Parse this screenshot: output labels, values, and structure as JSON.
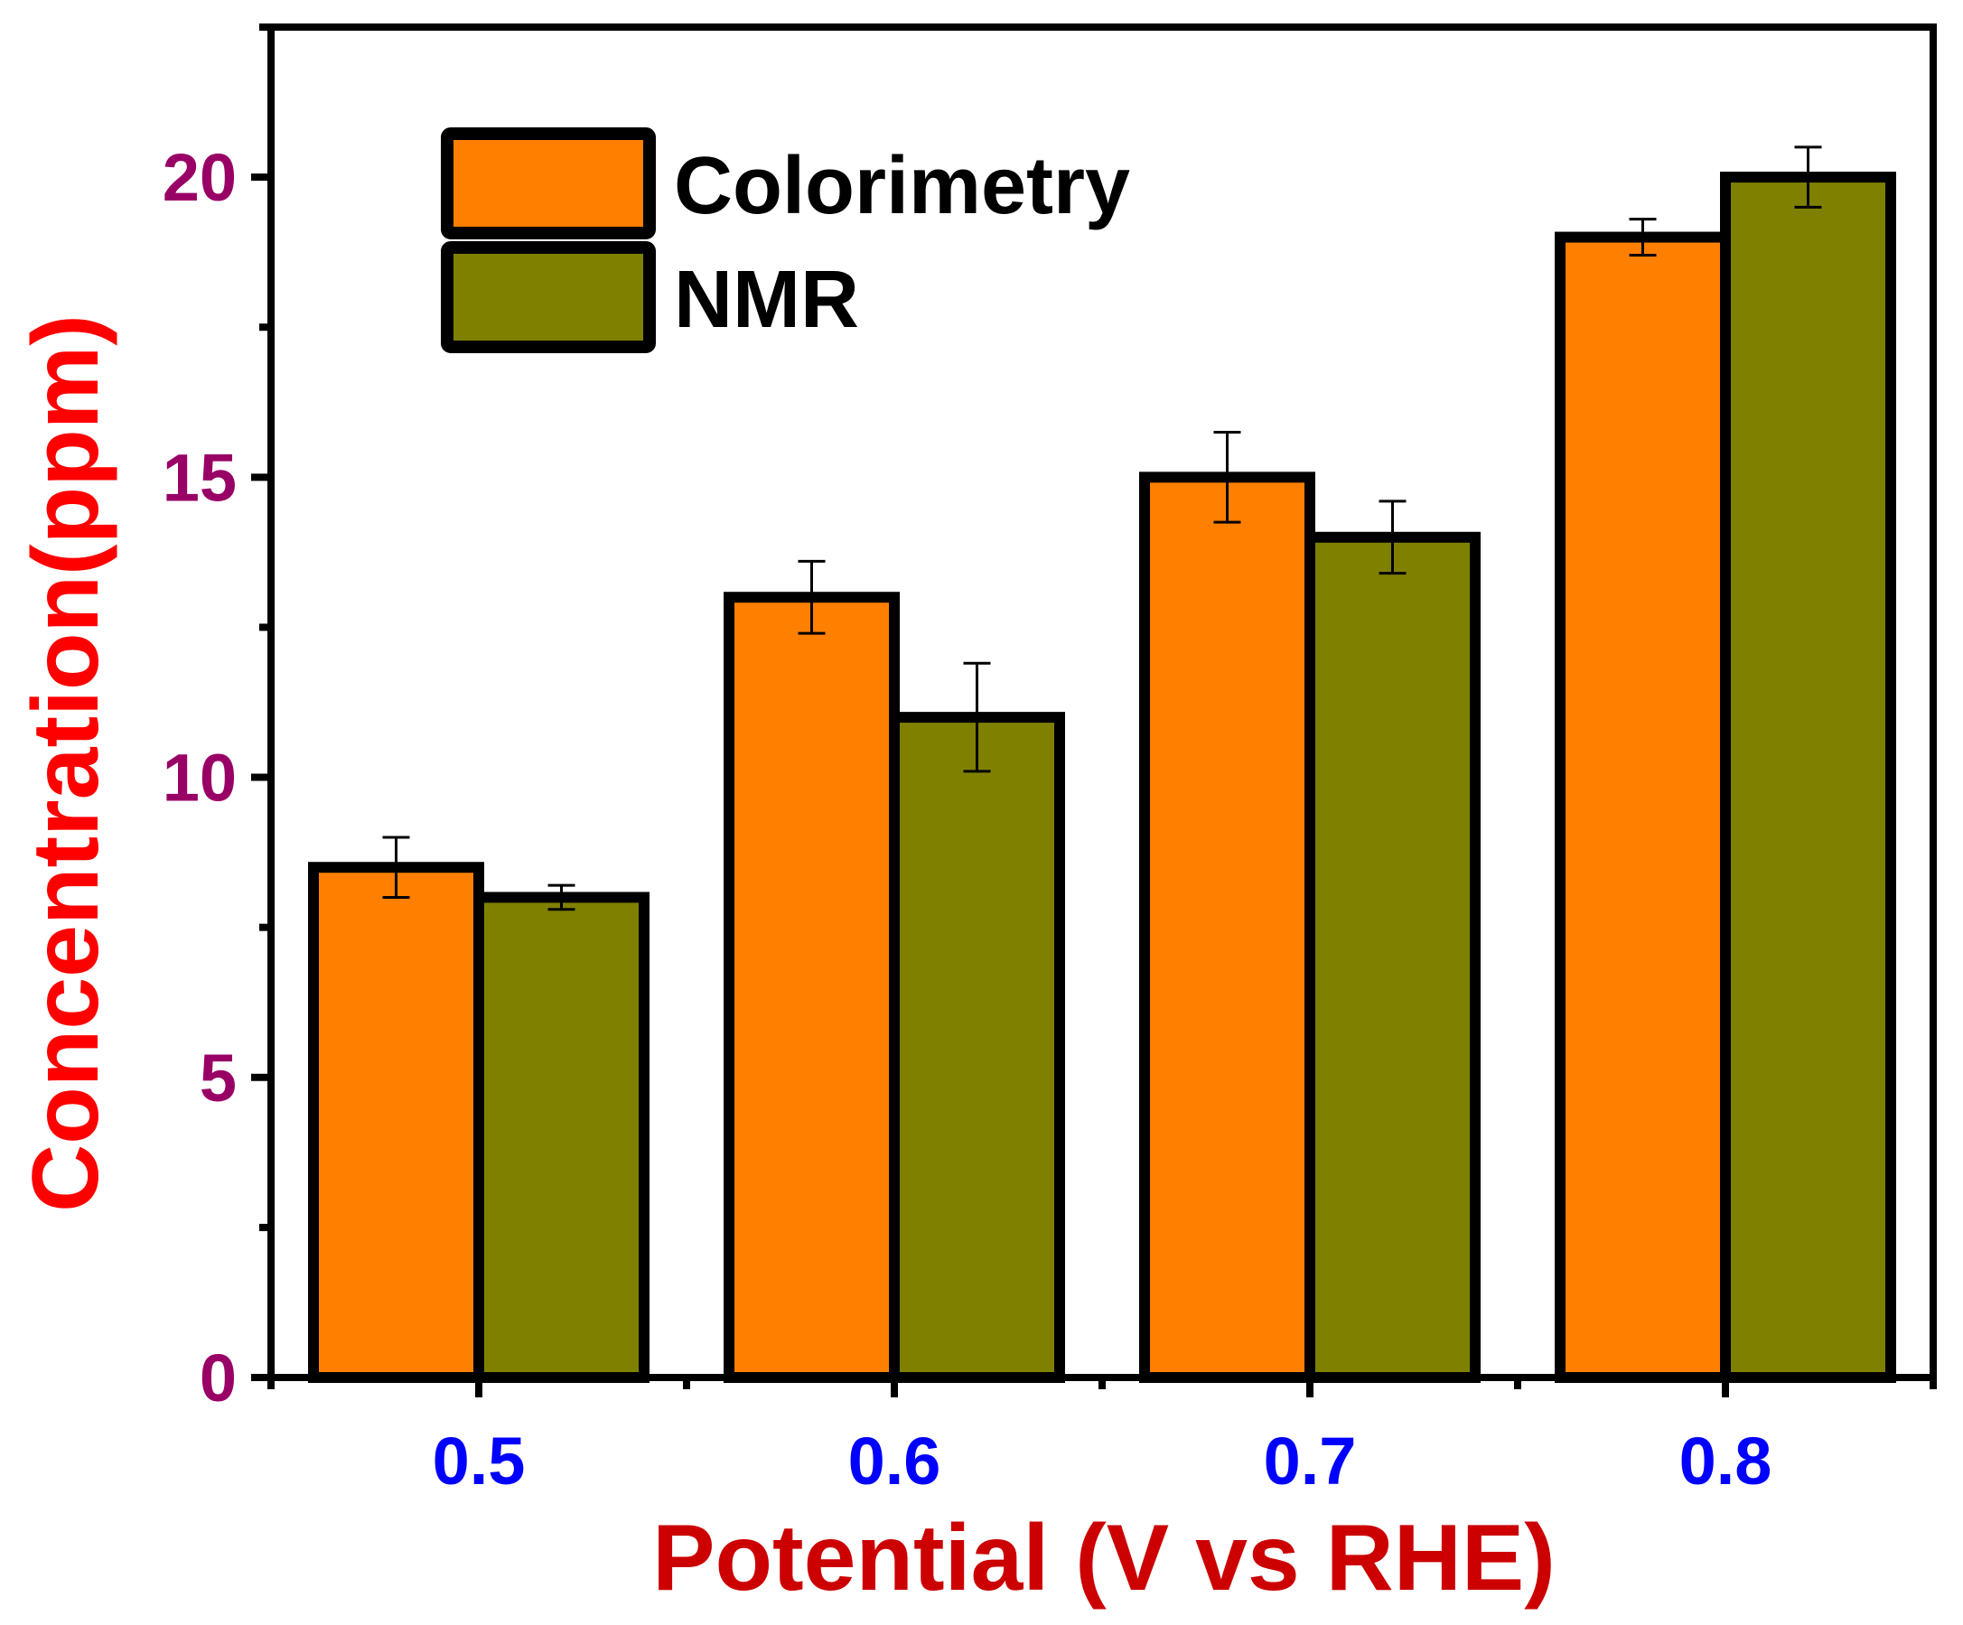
{
  "chart_data": {
    "type": "bar",
    "title": "",
    "xlabel": "Potential (V vs RHE)",
    "ylabel": "Concentration(ppm)",
    "categories": [
      "0.5",
      "0.6",
      "0.7",
      "0.8"
    ],
    "ylim": [
      0,
      22.5
    ],
    "yticks": [
      0,
      5,
      10,
      15,
      20
    ],
    "y_minor_ticks": [
      2.5,
      7.5,
      12.5,
      17.5,
      22.5
    ],
    "series": [
      {
        "name": "Colorimetry",
        "color": "#FF8000",
        "values": [
          8.5,
          13,
          15,
          19
        ],
        "errors": [
          0.5,
          0.6,
          0.75,
          0.3
        ]
      },
      {
        "name": "NMR",
        "color": "#808000",
        "values": [
          8,
          11,
          14,
          20
        ],
        "errors": [
          0.2,
          0.9,
          0.6,
          0.5
        ]
      }
    ],
    "legend": {
      "position": "top-left"
    },
    "grid": false,
    "colors": {
      "xtick_labels": "#0000FF",
      "ytick_labels": "#990066",
      "xlabel": "#CC0000",
      "ylabel": "#FF0000"
    }
  }
}
